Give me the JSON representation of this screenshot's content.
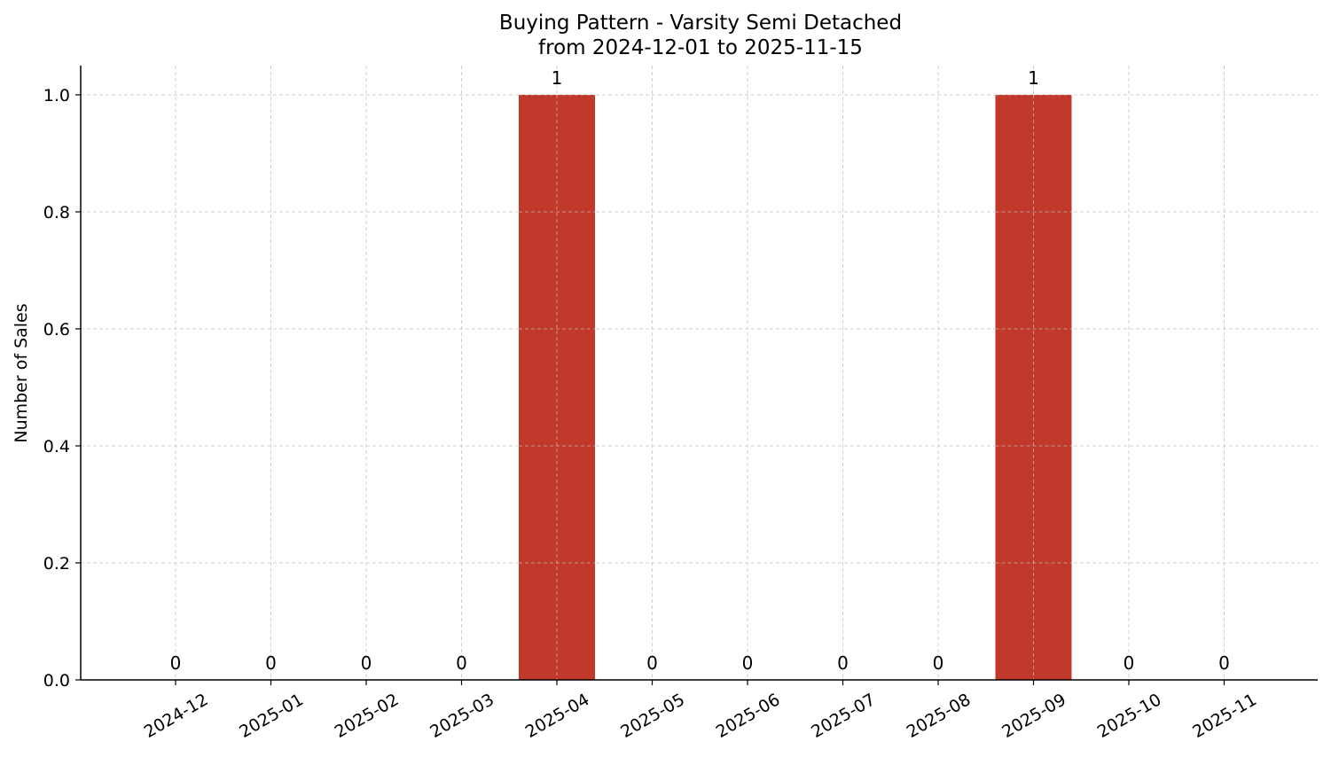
{
  "chart_data": {
    "type": "bar",
    "title_lines": [
      "Buying Pattern - Varsity Semi Detached",
      "from 2024-12-01 to 2025-11-15"
    ],
    "xlabel": "",
    "ylabel": "Number of Sales",
    "categories": [
      "2024-12",
      "2025-01",
      "2025-02",
      "2025-03",
      "2025-04",
      "2025-05",
      "2025-06",
      "2025-07",
      "2025-08",
      "2025-09",
      "2025-10",
      "2025-11"
    ],
    "values": [
      0,
      0,
      0,
      0,
      1,
      0,
      0,
      0,
      0,
      1,
      0,
      0
    ],
    "data_labels": [
      "0",
      "0",
      "0",
      "0",
      "1",
      "0",
      "0",
      "0",
      "0",
      "1",
      "0",
      "0"
    ],
    "ylim": [
      0,
      1.05
    ],
    "yticks": [
      0.0,
      0.2,
      0.4,
      0.6,
      0.8,
      1.0
    ],
    "ytick_labels": [
      "0.0",
      "0.2",
      "0.4",
      "0.6",
      "0.8",
      "1.0"
    ],
    "grid": true,
    "bar_color": "#c0392b"
  }
}
